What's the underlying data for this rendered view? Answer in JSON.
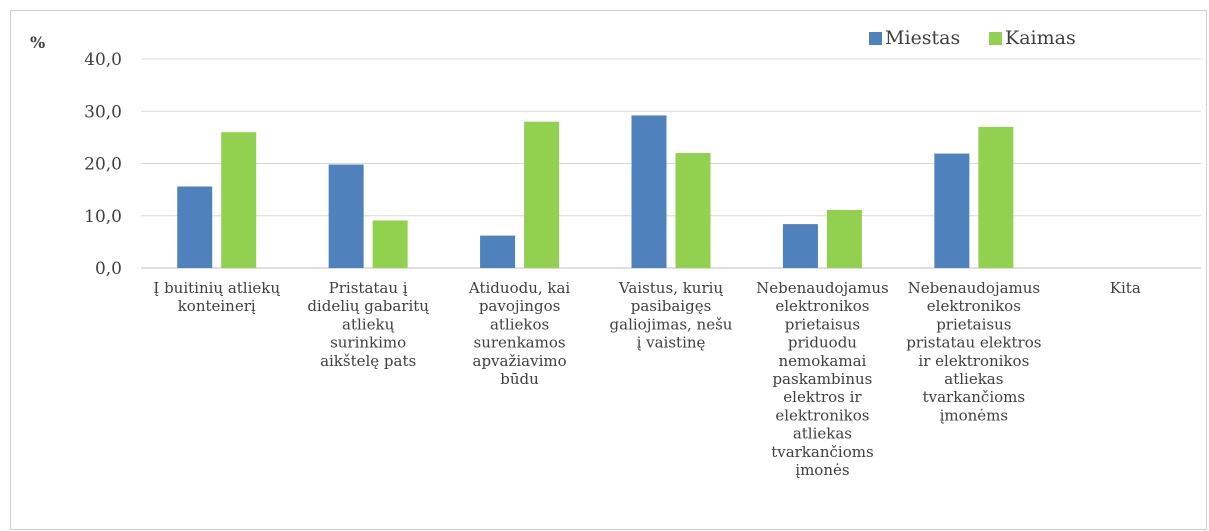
{
  "chart_data": {
    "type": "bar",
    "ylabel": "%",
    "ylim": [
      0,
      40
    ],
    "yticks": [
      "40,0",
      "30,0",
      "20,0",
      "10,0",
      "0,0"
    ],
    "legend_position": "top-right",
    "grid": true,
    "categories": [
      [
        "Į buitinių atliekų",
        "konteinerį"
      ],
      [
        "Pristatau į",
        "didelių gabaritų",
        "atliekų",
        "surinkimo",
        "aikštelę pats"
      ],
      [
        "Atiduodu, kai",
        "pavojingos",
        "atliekos",
        "surenkamos",
        "apvažiavimo",
        "būdu"
      ],
      [
        "Vaistus, kurių",
        "pasibaigęs",
        "galiojimas, nešu",
        "į vaistinę"
      ],
      [
        "Nebenaudojamus",
        "elektronikos",
        "prietaisus",
        "priduodu",
        "nemokamai",
        "paskambinus",
        "elektros ir",
        "elektronikos",
        "atliekas",
        "tvarkančioms",
        "įmonės"
      ],
      [
        "Nebenaudojamus",
        "elektronikos",
        "prietaisus",
        "pristatau elektros",
        "ir elektronikos",
        "atliekas",
        "tvarkančioms",
        "įmonėms"
      ],
      [
        "Kita"
      ]
    ],
    "series": [
      {
        "name": "Miestas",
        "color": "#4f81bd",
        "values": [
          15.6,
          19.8,
          6.2,
          29.2,
          8.4,
          21.9,
          0
        ]
      },
      {
        "name": "Kaimas",
        "color": "#92d050",
        "values": [
          26.0,
          9.1,
          28.0,
          22.0,
          11.1,
          27.0,
          0
        ]
      }
    ]
  }
}
